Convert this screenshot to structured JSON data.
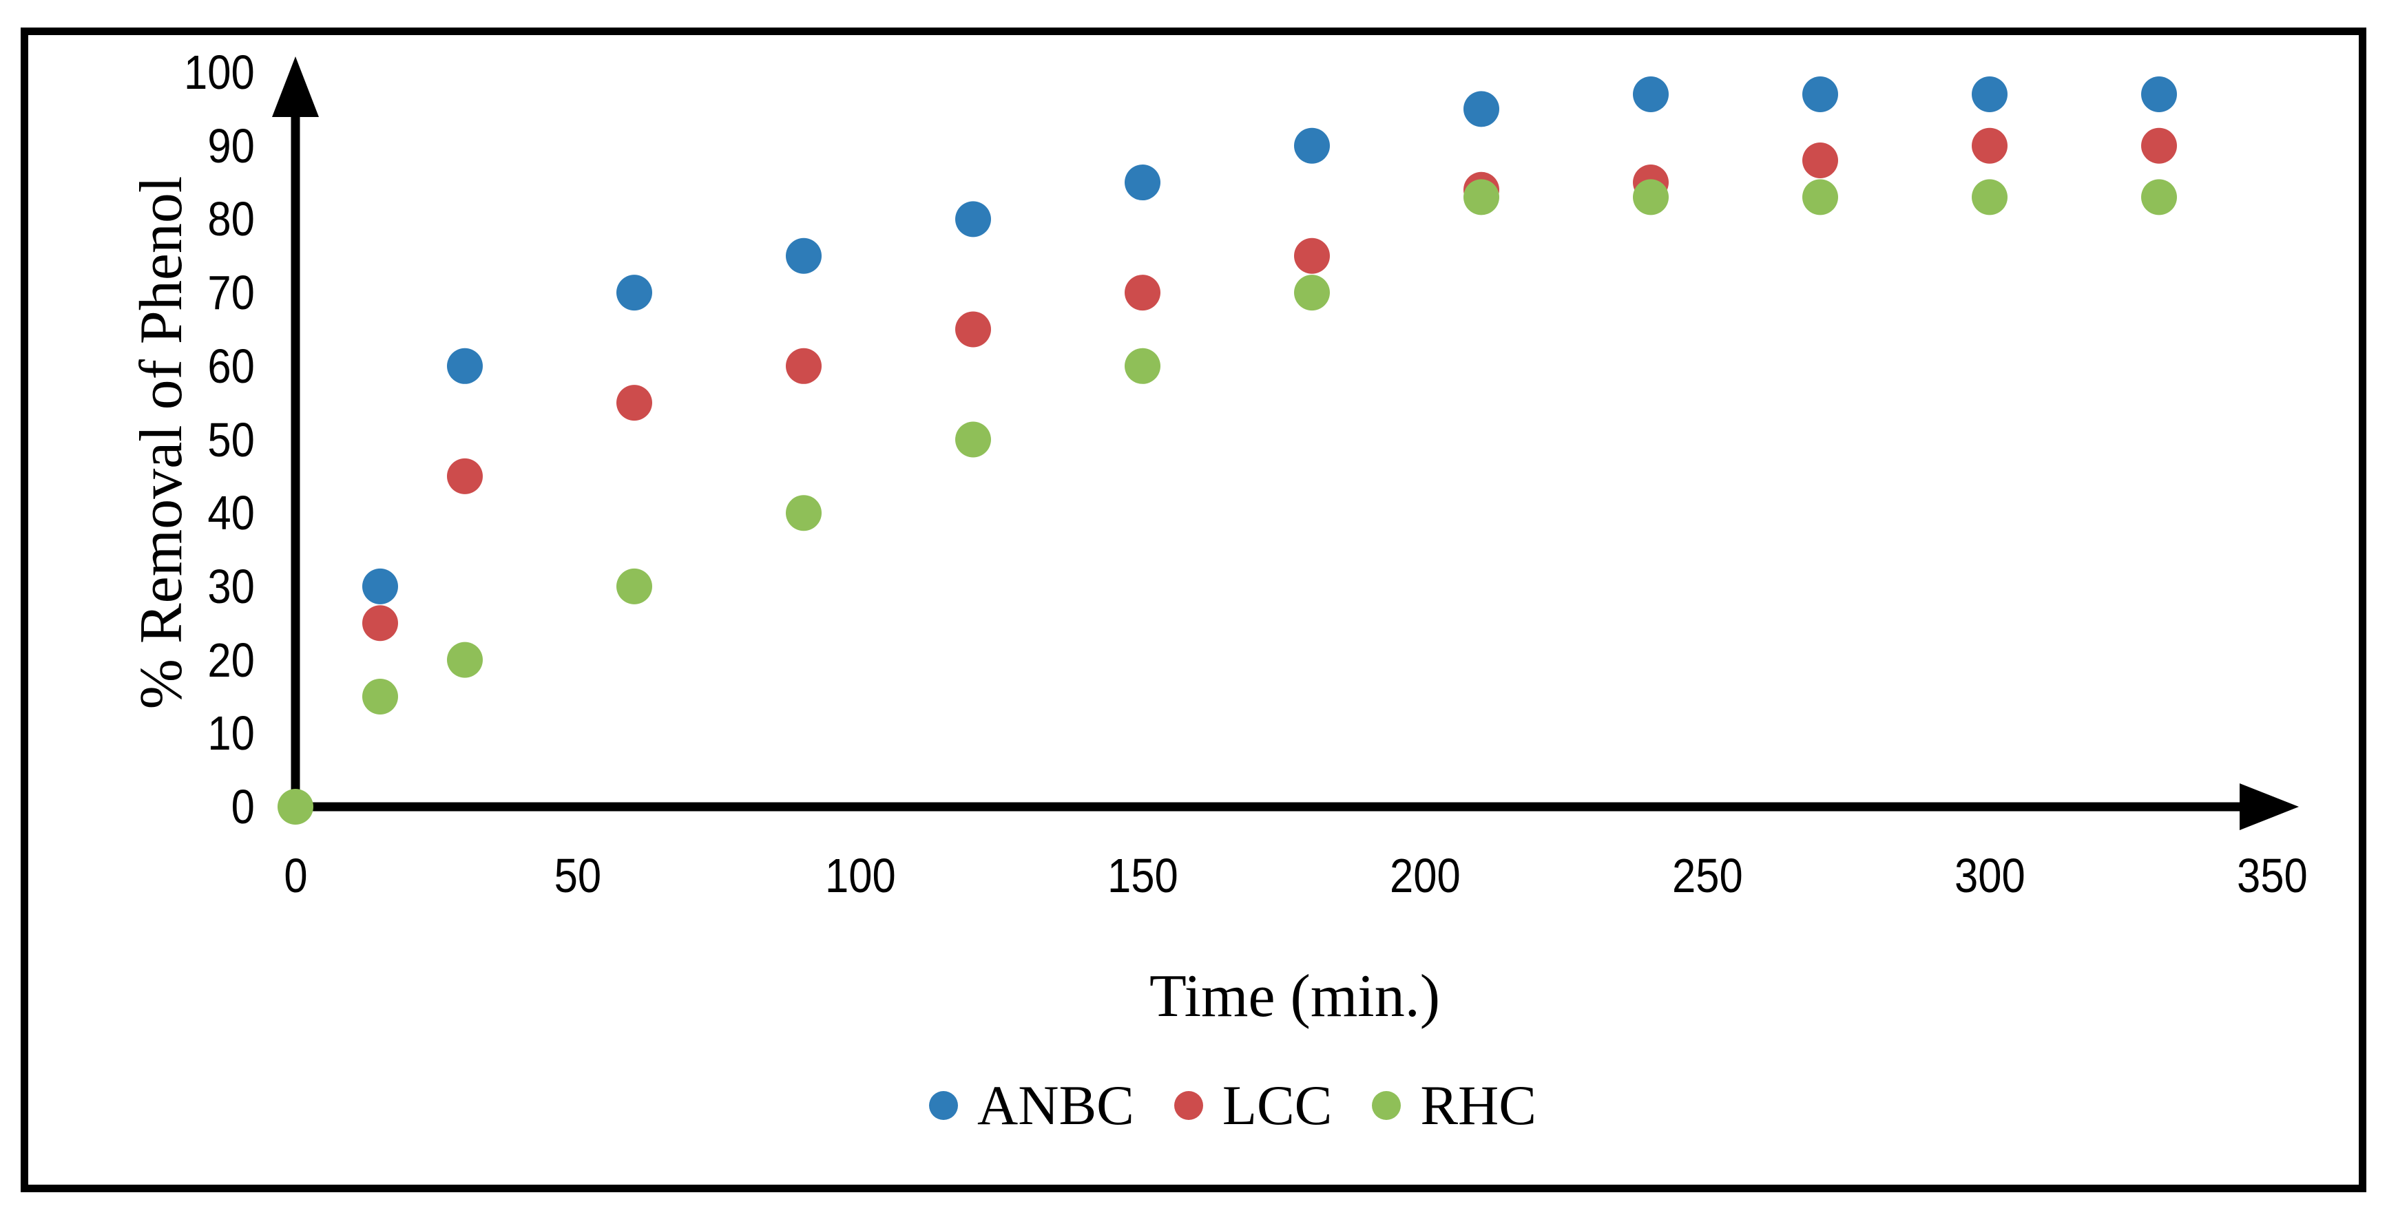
{
  "chart_data": {
    "type": "scatter",
    "title": "",
    "xlabel": "Time (min.)",
    "ylabel": "% Removal of Phenol",
    "x_ticks": [
      0,
      50,
      100,
      150,
      200,
      250,
      300,
      350
    ],
    "y_ticks": [
      0,
      10,
      20,
      30,
      40,
      50,
      60,
      70,
      80,
      90,
      100
    ],
    "xlim": [
      0,
      350
    ],
    "ylim": [
      0,
      100
    ],
    "grid": false,
    "legend_position": "bottom-center",
    "series": [
      {
        "name": "ANBC",
        "color": "#2E7CB8",
        "points": [
          [
            15,
            30
          ],
          [
            30,
            60
          ],
          [
            60,
            70
          ],
          [
            90,
            75
          ],
          [
            120,
            80
          ],
          [
            150,
            85
          ],
          [
            180,
            90
          ],
          [
            210,
            95
          ],
          [
            240,
            97
          ],
          [
            270,
            97
          ],
          [
            300,
            97
          ],
          [
            330,
            97
          ]
        ]
      },
      {
        "name": "LCC",
        "color": "#CD4C4C",
        "points": [
          [
            15,
            25
          ],
          [
            30,
            45
          ],
          [
            60,
            55
          ],
          [
            90,
            60
          ],
          [
            120,
            65
          ],
          [
            150,
            70
          ],
          [
            180,
            75
          ],
          [
            210,
            84
          ],
          [
            240,
            85
          ],
          [
            270,
            88
          ],
          [
            300,
            90
          ],
          [
            330,
            90
          ]
        ]
      },
      {
        "name": "RHC",
        "color": "#8FBF58",
        "points": [
          [
            0,
            0
          ],
          [
            15,
            15
          ],
          [
            30,
            20
          ],
          [
            60,
            30
          ],
          [
            90,
            40
          ],
          [
            120,
            50
          ],
          [
            150,
            60
          ],
          [
            180,
            70
          ],
          [
            210,
            83
          ],
          [
            240,
            83
          ],
          [
            270,
            83
          ],
          [
            300,
            83
          ],
          [
            330,
            83
          ]
        ]
      }
    ]
  },
  "colors": {
    "axis": "#000000",
    "frame_border": "#000000",
    "background": "#FFFFFF"
  }
}
